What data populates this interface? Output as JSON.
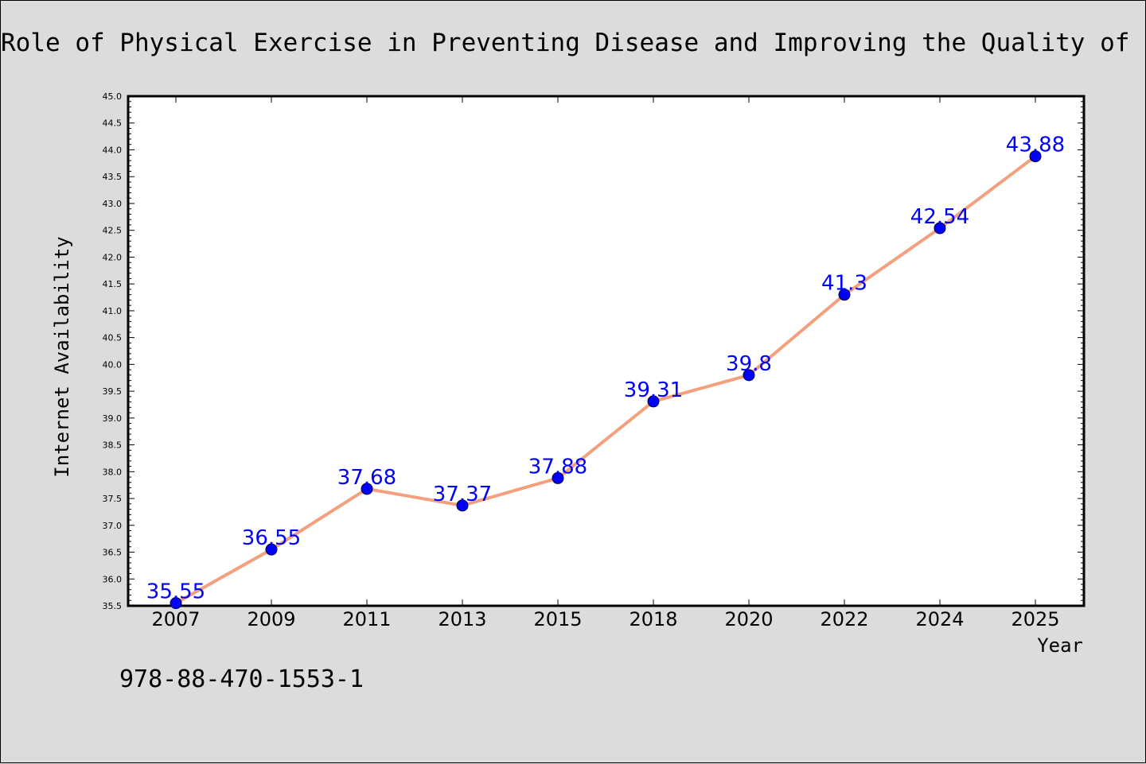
{
  "chart_data": {
    "type": "line",
    "title": "Role of Physical Exercise in Preventing Disease and Improving the Quality of Lif",
    "xlabel": "Year",
    "ylabel": "Internet Availability",
    "categories": [
      "2007",
      "2009",
      "2011",
      "2013",
      "2015",
      "2018",
      "2020",
      "2022",
      "2024",
      "2025"
    ],
    "series": [
      {
        "values": [
          35.55,
          36.55,
          37.68,
          37.37,
          37.88,
          39.31,
          39.8,
          41.3,
          42.54,
          43.88
        ],
        "data_labels": [
          "35.55",
          "36.55",
          "37.68",
          "37.37",
          "37.88",
          "39.31",
          "39.8",
          "41.3",
          "42.54",
          "43.88"
        ]
      }
    ],
    "ylim": [
      35.5,
      45.0
    ],
    "yticks": [
      "35.5",
      "36.0",
      "36.5",
      "37.0",
      "37.5",
      "38.0",
      "38.5",
      "39.0",
      "39.5",
      "40.0",
      "40.5",
      "41.0",
      "41.5",
      "42.0",
      "42.5",
      "43.0",
      "43.5",
      "44.0",
      "44.5",
      "45.0"
    ],
    "grid": false,
    "line_color": "#f4a07e",
    "marker_color": "#0000ff",
    "label_color": "#0000ff"
  },
  "annotation": {
    "text": "978-88-470-1553-1"
  }
}
